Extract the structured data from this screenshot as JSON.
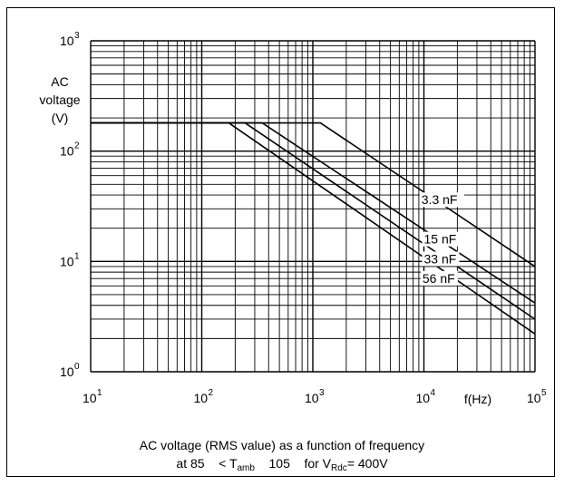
{
  "chart_data": {
    "type": "line",
    "title": "",
    "xlabel": "f(Hz)",
    "ylabel_lines": [
      "AC",
      "voltage",
      "(V)"
    ],
    "x_scale": "log",
    "y_scale": "log",
    "xlim": [
      10,
      100000
    ],
    "ylim": [
      1,
      1000
    ],
    "grid": true,
    "x_ticks": [
      {
        "base": "10",
        "exp": "1"
      },
      {
        "base": "10",
        "exp": "2"
      },
      {
        "base": "10",
        "exp": "3"
      },
      {
        "base": "10",
        "exp": "4"
      },
      {
        "base": "10",
        "exp": "5"
      }
    ],
    "y_ticks": [
      {
        "base": "10",
        "exp": "0"
      },
      {
        "base": "10",
        "exp": "1"
      },
      {
        "base": "10",
        "exp": "2"
      },
      {
        "base": "10",
        "exp": "3"
      }
    ],
    "series": [
      {
        "name": "3.3 nF",
        "points": [
          [
            10,
            180
          ],
          [
            1170,
            180
          ],
          [
            100000,
            9
          ]
        ]
      },
      {
        "name": "15 nF",
        "points": [
          [
            10,
            180
          ],
          [
            350,
            180
          ],
          [
            100000,
            4.2
          ]
        ]
      },
      {
        "name": "33 nF",
        "points": [
          [
            10,
            180
          ],
          [
            245,
            180
          ],
          [
            100000,
            3
          ]
        ]
      },
      {
        "name": "56 nF",
        "points": [
          [
            10,
            180
          ],
          [
            175,
            180
          ],
          [
            100000,
            2.2
          ]
        ]
      }
    ],
    "series_label_positions": [
      {
        "name": "3.3 nF",
        "anchor": [
          9500,
          33
        ]
      },
      {
        "name": "15 nF",
        "anchor": [
          10000,
          14.5
        ]
      },
      {
        "name": "33 nF",
        "anchor": [
          10000,
          9.6
        ]
      },
      {
        "name": "56 nF",
        "anchor": [
          9700,
          6.4
        ]
      }
    ]
  },
  "caption": {
    "line1": "AC voltage (RMS value) as a function of frequency",
    "line2_pre": "at 85",
    "line2_t": "< T",
    "line2_sub": "amb",
    "line2_mid": "105",
    "line2_for": "for V",
    "line2_vsub": "Rdc",
    "line2_end": "= 400V"
  }
}
